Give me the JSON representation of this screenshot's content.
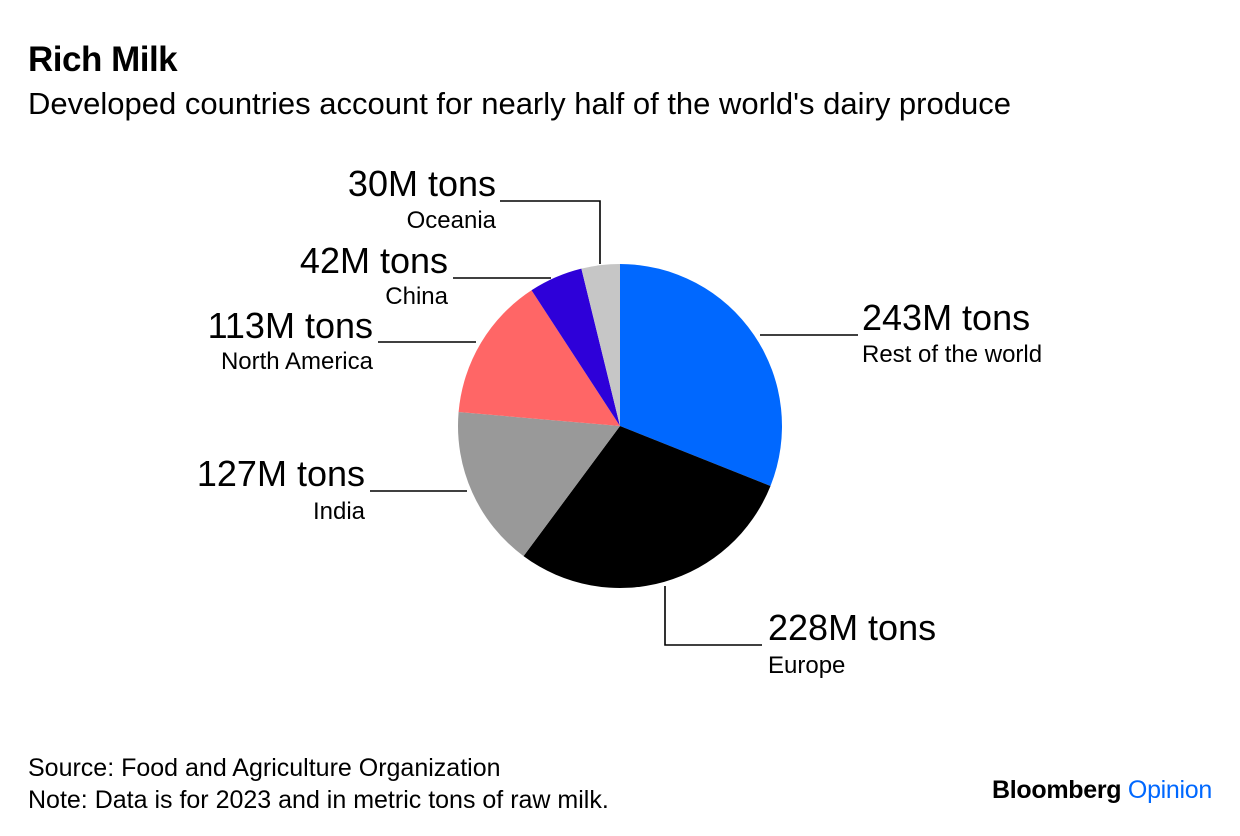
{
  "header": {
    "title": "Rich Milk",
    "subtitle": "Developed countries account for nearly half of the world's dairy produce"
  },
  "chart_data": {
    "type": "pie",
    "slices": [
      {
        "label": "Rest of the world",
        "value": 243,
        "value_label": "243M tons",
        "color": "#0068ff"
      },
      {
        "label": "Europe",
        "value": 228,
        "value_label": "228M tons",
        "color": "#000000"
      },
      {
        "label": "India",
        "value": 127,
        "value_label": "127M tons",
        "color": "#999999"
      },
      {
        "label": "North America",
        "value": 113,
        "value_label": "113M tons",
        "color": "#ff6666"
      },
      {
        "label": "China",
        "value": 42,
        "value_label": "42M tons",
        "color": "#2e00d9"
      },
      {
        "label": "Oceania",
        "value": 30,
        "value_label": "30M tons",
        "color": "#c6c6c6"
      }
    ]
  },
  "footer": {
    "source": "Source: Food and Agriculture Organization",
    "note": "Note: Data is for 2023 and in metric tons of raw milk."
  },
  "brand": {
    "name": "Bloomberg",
    "product": "Opinion",
    "product_color": "#0068ff"
  }
}
